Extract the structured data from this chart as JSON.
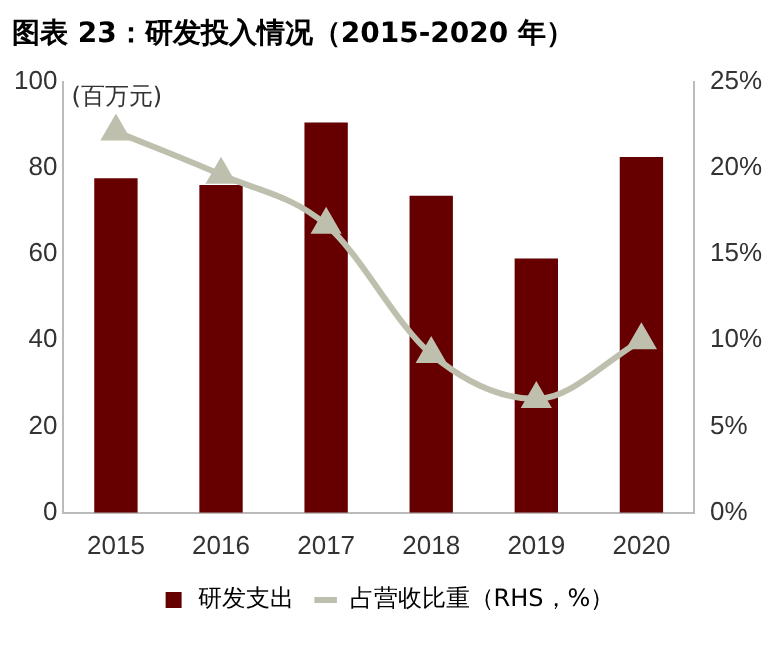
{
  "chart_data": {
    "type": "bar",
    "title": "图表 23：研发投入情况（2015-2020 年）",
    "ylabel": "(百万元)",
    "categories": [
      "2015",
      "2016",
      "2017",
      "2018",
      "2019",
      "2020"
    ],
    "series": [
      {
        "name": "研发支出",
        "color": "#660000",
        "values": [
          77.6,
          76,
          90.5,
          73.5,
          59,
          82.5
        ]
      },
      {
        "name": "占营收比重（RHS，%）",
        "type": "line",
        "axis": "y2",
        "color": "#bfbfae",
        "values": [
          22.1,
          19.6,
          16.7,
          9.2,
          6.6,
          10.0
        ]
      }
    ],
    "ylim": [
      0,
      100
    ],
    "yticks": [
      0,
      20,
      40,
      60,
      80,
      100
    ],
    "y2lim": [
      0,
      25
    ],
    "y2ticks": [
      {
        "value": 0,
        "label": "0%"
      },
      {
        "value": 5,
        "label": "5%"
      },
      {
        "value": 10,
        "label": "10%"
      },
      {
        "value": 15,
        "label": "15%"
      },
      {
        "value": 20,
        "label": "20%"
      },
      {
        "value": 25,
        "label": "25%"
      }
    ],
    "grid": false,
    "legend": "bottom",
    "marker": "triangle",
    "line_style": "solid"
  }
}
